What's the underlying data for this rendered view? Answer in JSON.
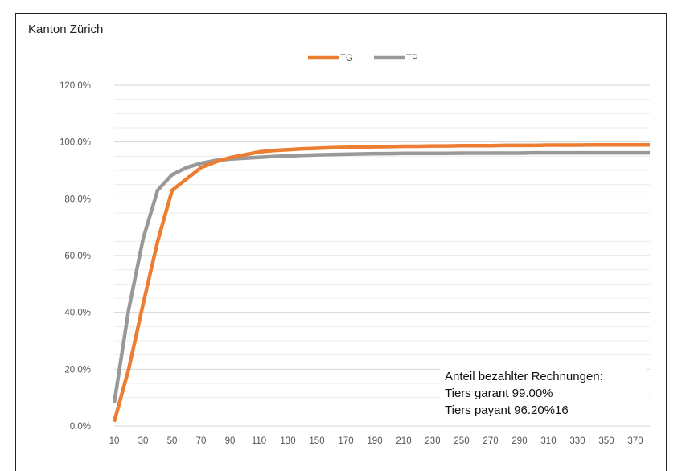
{
  "chart_data": {
    "type": "line",
    "title": "Kanton Zürich",
    "x": [
      10,
      20,
      30,
      40,
      50,
      60,
      70,
      80,
      90,
      100,
      110,
      120,
      130,
      140,
      150,
      160,
      170,
      180,
      190,
      200,
      210,
      220,
      230,
      240,
      250,
      260,
      270,
      280,
      290,
      300,
      310,
      320,
      330,
      340,
      350,
      360,
      370,
      380
    ],
    "xticks": [
      "10",
      "30",
      "50",
      "70",
      "90",
      "110",
      "130",
      "150",
      "170",
      "190",
      "210",
      "230",
      "250",
      "270",
      "290",
      "310",
      "330",
      "350",
      "370"
    ],
    "yticks": [
      "0.0%",
      "20.0%",
      "40.0%",
      "60.0%",
      "80.0%",
      "100.0%",
      "120.0%"
    ],
    "ylim": [
      0,
      120
    ],
    "legend_position": "top-center",
    "series": [
      {
        "name": "TG",
        "color": "#ED7D31",
        "values": [
          1.5,
          20,
          43,
          65,
          83,
          87,
          91,
          93,
          94.5,
          95.5,
          96.5,
          97,
          97.3,
          97.6,
          97.8,
          98,
          98.1,
          98.2,
          98.3,
          98.4,
          98.5,
          98.5,
          98.6,
          98.6,
          98.7,
          98.7,
          98.7,
          98.8,
          98.8,
          98.8,
          98.9,
          98.9,
          98.9,
          99,
          99,
          99,
          99,
          99
        ]
      },
      {
        "name": "TP",
        "color": "#999999",
        "values": [
          8,
          41,
          66,
          83,
          88.5,
          91,
          92.5,
          93.5,
          94,
          94.3,
          94.6,
          94.9,
          95.1,
          95.3,
          95.5,
          95.6,
          95.7,
          95.8,
          95.9,
          95.9,
          96,
          96,
          96,
          96,
          96.1,
          96.1,
          96.1,
          96.1,
          96.1,
          96.2,
          96.2,
          96.2,
          96.2,
          96.2,
          96.2,
          96.2,
          96.2,
          96.2
        ]
      }
    ],
    "annotation": {
      "line1": "Anteil bezahlter Rechnungen:",
      "line2": "Tiers garant  99.00%",
      "line3": "Tiers payant 96.20%16"
    }
  }
}
